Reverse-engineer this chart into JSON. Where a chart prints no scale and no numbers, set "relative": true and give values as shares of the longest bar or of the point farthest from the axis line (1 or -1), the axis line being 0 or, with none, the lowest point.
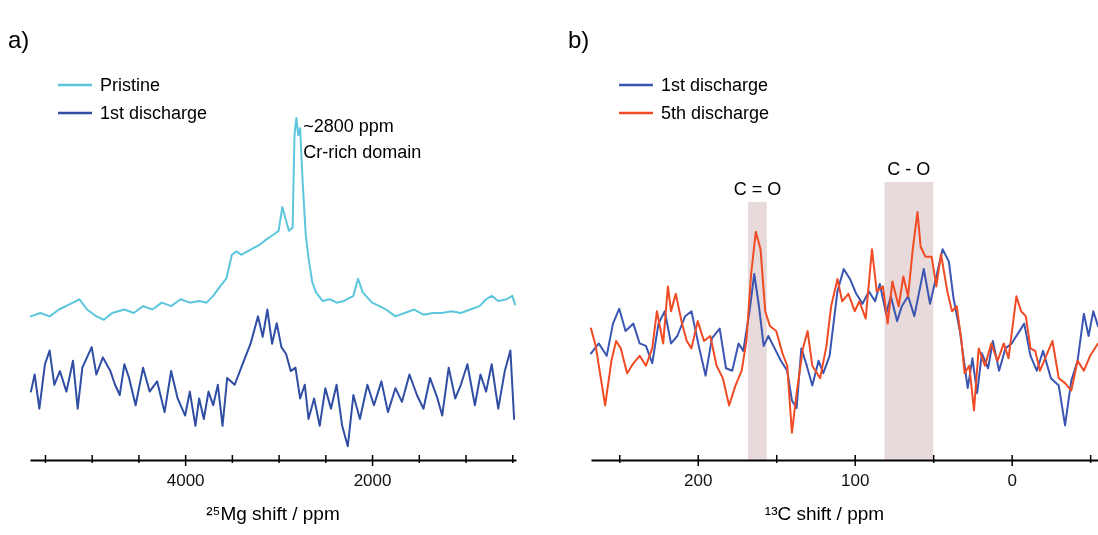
{
  "chart_data": [
    {
      "type": "line",
      "title": "a)",
      "xlabel": "²⁵Mg shift / ppm",
      "relative": true,
      "legend": "top left",
      "xlim": [
        5660,
        460
      ],
      "xticks": [
        {
          "value": 5500,
          "label": null
        },
        {
          "value": 5000,
          "label": null
        },
        {
          "value": 4500,
          "label": null
        },
        4000,
        {
          "value": 3500,
          "label": null
        },
        {
          "value": 3000,
          "label": null
        },
        {
          "value": 2500,
          "label": null
        },
        2000,
        {
          "value": 1500,
          "label": null
        },
        {
          "value": 1000,
          "label": null
        },
        {
          "value": 500,
          "label": null
        }
      ],
      "annotations": [
        {
          "text": "~2800 ppm",
          "x": 2800,
          "y": 1
        },
        {
          "text": "Cr-rich domain",
          "x": 2800,
          "y": 1
        }
      ],
      "series": [
        {
          "name": "Pristine",
          "color": "#5cc6dc",
          "x": [
            5650,
            5550,
            5450,
            5350,
            5200,
            5130,
            5050,
            4950,
            4870,
            4780,
            4650,
            4550,
            4450,
            4350,
            4250,
            4150,
            4050,
            3950,
            3850,
            3770,
            3700,
            3620,
            3560,
            3500,
            3450,
            3400,
            3300,
            3200,
            3130,
            3050,
            3000,
            2960,
            2920,
            2890,
            2850,
            2830,
            2810,
            2790,
            2770,
            2740,
            2710,
            2680,
            2640,
            2600,
            2530,
            2450,
            2380,
            2300,
            2200,
            2150,
            2100,
            2000,
            1920,
            1850,
            1750,
            1650,
            1550,
            1450,
            1350,
            1250,
            1150,
            1050,
            950,
            850,
            780,
            720,
            650,
            560,
            500,
            470
          ],
          "values": [
            0.42,
            0.43,
            0.42,
            0.44,
            0.46,
            0.47,
            0.44,
            0.42,
            0.41,
            0.43,
            0.44,
            0.43,
            0.45,
            0.44,
            0.46,
            0.45,
            0.47,
            0.46,
            0.465,
            0.46,
            0.48,
            0.51,
            0.53,
            0.6,
            0.61,
            0.6,
            0.615,
            0.63,
            0.645,
            0.66,
            0.67,
            0.74,
            0.7,
            0.67,
            0.68,
            0.95,
            1,
            0.95,
            0.97,
            0.8,
            0.66,
            0.59,
            0.52,
            0.49,
            0.465,
            0.47,
            0.46,
            0.465,
            0.48,
            0.53,
            0.49,
            0.46,
            0.45,
            0.44,
            0.42,
            0.43,
            0.44,
            0.425,
            0.43,
            0.43,
            0.435,
            0.43,
            0.44,
            0.45,
            0.47,
            0.48,
            0.465,
            0.47,
            0.48,
            0.455
          ]
        },
        {
          "name": "1st discharge",
          "color": "#2f4ea4",
          "x": [
            5650,
            5610,
            5560,
            5500,
            5450,
            5400,
            5340,
            5270,
            5200,
            5150,
            5100,
            5000,
            4950,
            4880,
            4800,
            4750,
            4700,
            4650,
            4600,
            4530,
            4450,
            4380,
            4300,
            4220,
            4150,
            4080,
            4000,
            3950,
            3890,
            3850,
            3800,
            3750,
            3700,
            3650,
            3600,
            3550,
            3470,
            3400,
            3300,
            3220,
            3170,
            3120,
            3070,
            3020,
            2970,
            2920,
            2870,
            2820,
            2770,
            2720,
            2680,
            2620,
            2560,
            2500,
            2440,
            2380,
            2320,
            2260,
            2200,
            2130,
            2050,
            1980,
            1900,
            1830,
            1750,
            1680,
            1600,
            1520,
            1450,
            1380,
            1300,
            1250,
            1180,
            1110,
            1050,
            980,
            900,
            840,
            780,
            720,
            650,
            580,
            520,
            480
          ],
          "values": [
            0.2,
            0.25,
            0.15,
            0.28,
            0.32,
            0.22,
            0.26,
            0.2,
            0.29,
            0.15,
            0.27,
            0.33,
            0.25,
            0.3,
            0.26,
            0.22,
            0.19,
            0.28,
            0.24,
            0.16,
            0.27,
            0.2,
            0.23,
            0.14,
            0.26,
            0.18,
            0.13,
            0.2,
            0.1,
            0.18,
            0.12,
            0.2,
            0.16,
            0.22,
            0.1,
            0.24,
            0.22,
            0.27,
            0.34,
            0.42,
            0.36,
            0.44,
            0.34,
            0.4,
            0.33,
            0.31,
            0.26,
            0.27,
            0.18,
            0.22,
            0.12,
            0.18,
            0.1,
            0.21,
            0.15,
            0.22,
            0.1,
            0.04,
            0.19,
            0.12,
            0.22,
            0.16,
            0.23,
            0.14,
            0.21,
            0.17,
            0.25,
            0.19,
            0.15,
            0.24,
            0.18,
            0.13,
            0.27,
            0.18,
            0.22,
            0.28,
            0.16,
            0.25,
            0.2,
            0.28,
            0.15,
            0.26,
            0.32,
            0.12
          ]
        }
      ]
    },
    {
      "type": "line",
      "title": "b)",
      "xlabel": "¹³C shift / ppm",
      "relative": true,
      "legend": "top left",
      "xlim": [
        268,
        -55
      ],
      "xticks": [
        {
          "value": 250,
          "label": null
        },
        200,
        {
          "value": 150,
          "label": null
        },
        100,
        {
          "value": 50,
          "label": null
        },
        0,
        {
          "value": -50,
          "label": null
        }
      ],
      "bands": [
        {
          "axis": "x",
          "from": 168,
          "to": 156,
          "label": "C = O",
          "color": "#e8dada"
        },
        {
          "axis": "x",
          "from": 81,
          "to": 50,
          "label": "C - O",
          "color": "#e8dada"
        }
      ],
      "series": [
        {
          "name": "1st discharge",
          "color": "#3a56b2",
          "x": [
            268,
            263,
            258,
            254,
            250,
            246,
            241,
            237,
            233,
            229,
            225,
            221,
            217,
            213,
            208,
            204,
            199,
            195,
            191,
            186,
            182,
            178,
            174,
            171,
            167,
            164,
            161,
            158,
            155,
            151,
            147,
            143,
            140,
            137,
            134,
            131,
            127,
            123,
            120,
            116,
            111,
            107,
            103,
            99,
            95,
            91,
            87,
            84,
            80,
            77,
            73,
            70,
            66,
            62,
            56,
            52,
            48,
            44,
            40,
            37,
            33,
            28,
            25,
            22,
            19,
            15,
            12,
            8,
            4,
            0,
            -8,
            -12,
            -16,
            -20,
            -25,
            -30,
            -34,
            -38,
            -42,
            -46,
            -49,
            -52,
            -55
          ],
          "values": [
            0.43,
            0.47,
            0.42,
            0.55,
            0.61,
            0.52,
            0.55,
            0.47,
            0.46,
            0.39,
            0.55,
            0.6,
            0.47,
            0.5,
            0.58,
            0.6,
            0.45,
            0.34,
            0.49,
            0.53,
            0.37,
            0.36,
            0.47,
            0.44,
            0.6,
            0.75,
            0.62,
            0.46,
            0.5,
            0.45,
            0.4,
            0.36,
            0.24,
            0.21,
            0.45,
            0.39,
            0.3,
            0.4,
            0.35,
            0.42,
            0.68,
            0.77,
            0.73,
            0.67,
            0.63,
            0.68,
            0.64,
            0.71,
            0.59,
            0.66,
            0.56,
            0.62,
            0.66,
            0.58,
            0.77,
            0.63,
            0.74,
            0.85,
            0.8,
            0.65,
            0.52,
            0.29,
            0.41,
            0.27,
            0.43,
            0.37,
            0.48,
            0.36,
            0.45,
            0.47,
            0.55,
            0.42,
            0.36,
            0.44,
            0.33,
            0.3,
            0.14,
            0.32,
            0.4,
            0.59,
            0.5,
            0.6,
            0.54
          ]
        },
        {
          "name": "5th discharge",
          "color": "#f04b24",
          "x": [
            268,
            265,
            262,
            259,
            255,
            252,
            249,
            245,
            241,
            237,
            233,
            229,
            226,
            222,
            219,
            217,
            214,
            210,
            207,
            204,
            200,
            196,
            192,
            188,
            184,
            180,
            176,
            172,
            169,
            166,
            163,
            160,
            157,
            154,
            150,
            146,
            143,
            140,
            137,
            133,
            130,
            127,
            122,
            118,
            115,
            111,
            108,
            104,
            100,
            97,
            93,
            89,
            86,
            82,
            79,
            76,
            72,
            69,
            66,
            63,
            60,
            58,
            55,
            51,
            48,
            45,
            41,
            38,
            35,
            32,
            30,
            27,
            24,
            21,
            17,
            13,
            9,
            5,
            2,
            -3,
            -6,
            -9,
            -12,
            -15,
            -18,
            -22,
            -26,
            -30,
            -34,
            -38,
            -42,
            -46,
            -50,
            -55
          ],
          "values": [
            0.53,
            0.46,
            0.34,
            0.22,
            0.4,
            0.48,
            0.45,
            0.35,
            0.39,
            0.42,
            0.38,
            0.45,
            0.6,
            0.47,
            0.7,
            0.6,
            0.67,
            0.55,
            0.48,
            0.45,
            0.56,
            0.48,
            0.5,
            0.38,
            0.33,
            0.22,
            0.3,
            0.36,
            0.48,
            0.75,
            0.92,
            0.85,
            0.6,
            0.54,
            0.52,
            0.43,
            0.38,
            0.11,
            0.27,
            0.45,
            0.52,
            0.38,
            0.33,
            0.46,
            0.62,
            0.73,
            0.64,
            0.67,
            0.6,
            0.64,
            0.57,
            0.85,
            0.68,
            0.7,
            0.55,
            0.72,
            0.62,
            0.74,
            0.66,
            0.85,
            1,
            0.86,
            0.82,
            0.82,
            0.7,
            0.83,
            0.68,
            0.6,
            0.62,
            0.48,
            0.35,
            0.38,
            0.2,
            0.45,
            0.38,
            0.47,
            0.4,
            0.47,
            0.41,
            0.66,
            0.6,
            0.58,
            0.45,
            0.44,
            0.36,
            0.42,
            0.48,
            0.33,
            0.31,
            0.28,
            0.4,
            0.36,
            0.42,
            0.47
          ]
        }
      ]
    }
  ]
}
